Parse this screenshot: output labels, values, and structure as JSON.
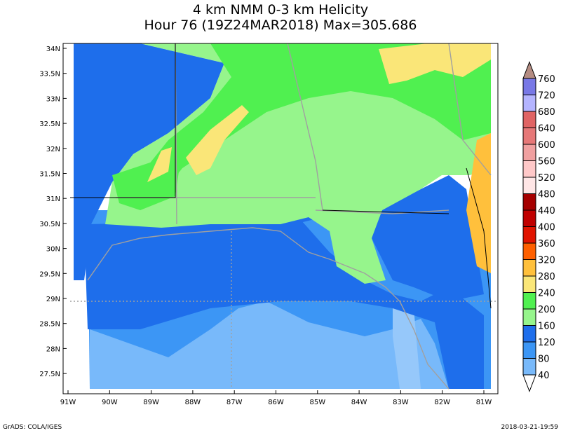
{
  "title": [
    "4 km NMM 0-3 km Helicity",
    "Hour 76 (19Z24MAR2018) Max=305.686"
  ],
  "lat_labels": [
    "34N",
    "33.5N",
    "33N",
    "32.5N",
    "32N",
    "31.5N",
    "31N",
    "30.5N",
    "30N",
    "29.5N",
    "29N",
    "28.5N",
    "28N",
    "27.5N"
  ],
  "lon_labels": [
    "91W",
    "90W",
    "89W",
    "88W",
    "87W",
    "86W",
    "85W",
    "84W",
    "83W",
    "82W",
    "81W"
  ],
  "legend": {
    "levels": [
      40,
      80,
      120,
      160,
      200,
      240,
      280,
      320,
      360,
      400,
      440,
      480,
      520,
      560,
      600,
      640,
      680,
      720,
      760
    ],
    "colors": [
      "#ffffff",
      "#78b9fa",
      "#3c96f5",
      "#1e6eeb",
      "#96f58c",
      "#50f050",
      "#fae678",
      "#ffc03c",
      "#ff6000",
      "#e11400",
      "#c00000",
      "#a50000",
      "#ffe6e6",
      "#ffc8c8",
      "#f0a0a0",
      "#e67878",
      "#e06464",
      "#b4b4ff",
      "#7878e6",
      "#b48c82"
    ]
  },
  "footer": {
    "left": "GrADS: COLA/IGES",
    "right": "2018-03-21-19:59"
  }
}
